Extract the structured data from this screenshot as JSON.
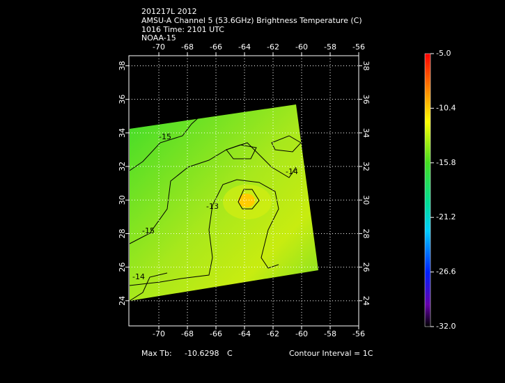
{
  "header": {
    "lines": [
      "201217L 2012",
      "AMSU-A Channel 5 (53.6GHz) Brightness Temperature (C)",
      "1016 Time: 2101 UTC",
      "NOAA-15"
    ]
  },
  "map": {
    "xlim": [
      -72.1,
      -56
    ],
    "ylim": [
      22.5,
      38.6
    ],
    "xticks": [
      -70,
      -68,
      -66,
      -64,
      -62,
      -60,
      -58,
      -56
    ],
    "yticks": [
      24,
      26,
      28,
      30,
      32,
      34,
      36,
      38
    ],
    "contour_labels": [
      "-15",
      "-14",
      "-13",
      "-15",
      "-14"
    ]
  },
  "colorbar": {
    "lim": [
      -32,
      -5
    ],
    "ticks": [
      {
        "value": -5,
        "label": "-5.0"
      },
      {
        "value": -10.4,
        "label": "-10.4"
      },
      {
        "value": -15.8,
        "label": "-15.8"
      },
      {
        "value": -21.2,
        "label": "-21.2"
      },
      {
        "value": -26.6,
        "label": "-26.6"
      },
      {
        "value": -32,
        "label": "-32.0"
      }
    ]
  },
  "footer": {
    "max_label": "Max Tb:",
    "max_value": "-10.6298",
    "unit": "C",
    "contour_interval": "Contour Interval = 1C"
  }
}
